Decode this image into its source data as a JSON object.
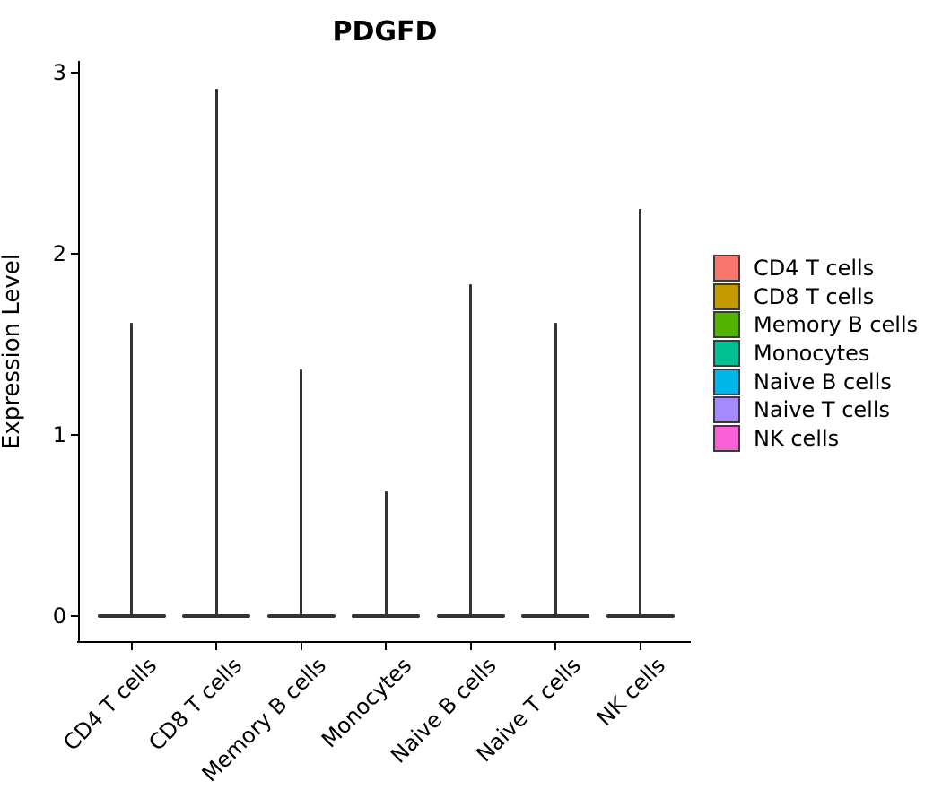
{
  "chart_data": {
    "type": "violin",
    "title": "PDGFD",
    "ylabel": "Expression Level",
    "xlabel": "",
    "categories": [
      "CD4 T cells",
      "CD8 T cells",
      "Memory B cells",
      "Monocytes",
      "Naive B cells",
      "Naive T cells",
      "NK cells"
    ],
    "series": [
      {
        "name": "max_expression",
        "values": [
          1.62,
          2.91,
          1.36,
          0.69,
          1.83,
          1.62,
          2.25
        ]
      },
      {
        "name": "density_bulk_at",
        "values": [
          0,
          0,
          0,
          0,
          0,
          0,
          0
        ]
      }
    ],
    "yticks": [
      0,
      1,
      2,
      3
    ],
    "ylim": [
      0,
      3.05
    ],
    "grid": false,
    "legend_position": "right",
    "legend": [
      {
        "label": "CD4 T cells",
        "color": "#F8766D"
      },
      {
        "label": "CD8 T cells",
        "color": "#C49A00"
      },
      {
        "label": "Memory B cells",
        "color": "#53B400"
      },
      {
        "label": "Monocytes",
        "color": "#00C094"
      },
      {
        "label": "Naive B cells",
        "color": "#00B6EB"
      },
      {
        "label": "Naive T cells",
        "color": "#A58AFF"
      },
      {
        "label": "NK cells",
        "color": "#FB61D7"
      }
    ],
    "outline_color": "#333333",
    "axis_color": "#000000"
  }
}
